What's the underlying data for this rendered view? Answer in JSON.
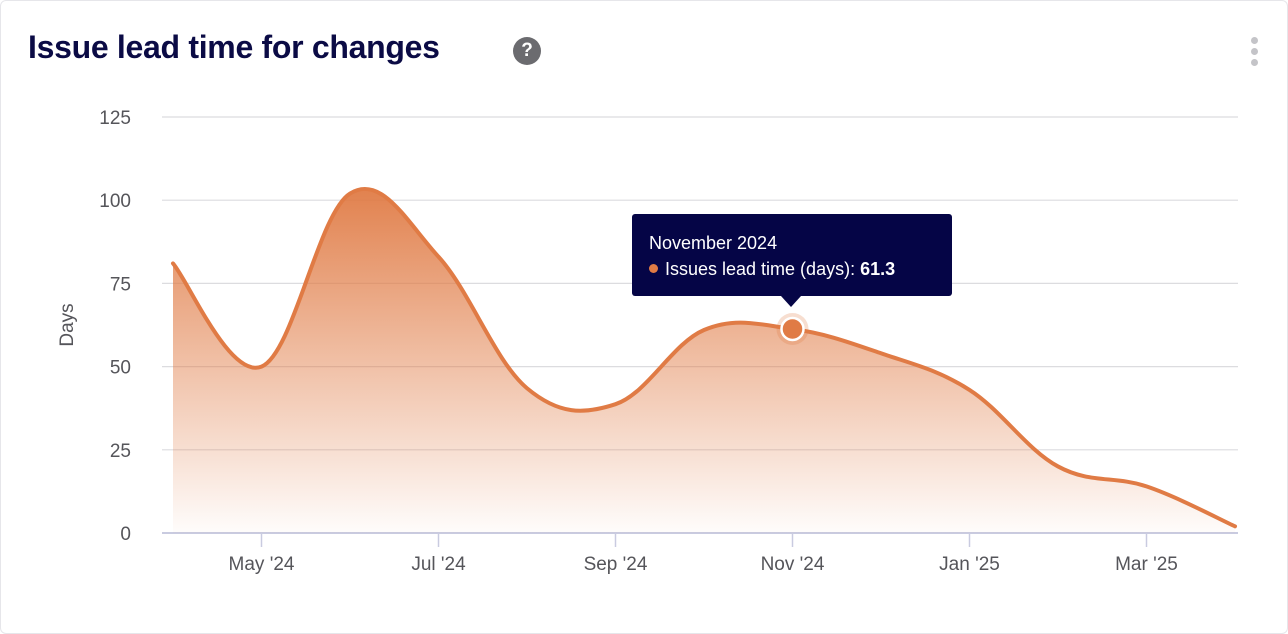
{
  "header": {
    "title": "Issue lead time for changes",
    "help_icon": "question-circle-icon",
    "menu_icon": "kebab-vertical-icon"
  },
  "tooltip": {
    "title": "November 2024",
    "series_label": "Issues lead time (days):",
    "value": "61.3"
  },
  "chart_data": {
    "type": "area",
    "title": "",
    "xlabel": "",
    "ylabel": "Days",
    "ylim": [
      0,
      125
    ],
    "yticks": [
      "0",
      "25",
      "50",
      "75",
      "100",
      "125"
    ],
    "x": [
      "2024-04",
      "2024-05",
      "2024-06",
      "2024-07",
      "2024-08",
      "2024-09",
      "2024-10",
      "2024-11",
      "2024-12",
      "2025-01",
      "2025-02",
      "2025-03",
      "2025-04"
    ],
    "xtick_labels": [
      "May '24",
      "Jul '24",
      "Sep '24",
      "Nov '24",
      "Jan '25",
      "Mar '25"
    ],
    "xtick_months": [
      "2024-05",
      "2024-07",
      "2024-09",
      "2024-11",
      "2025-01",
      "2025-03"
    ],
    "series": [
      {
        "name": "Issues lead time (days)",
        "values": [
          81,
          50,
          102,
          83,
          43.5,
          38.7,
          61,
          61.3,
          54,
          43,
          20,
          14,
          2
        ]
      }
    ],
    "highlighted": "2024-11",
    "grid": true,
    "color": "#e07b45"
  }
}
